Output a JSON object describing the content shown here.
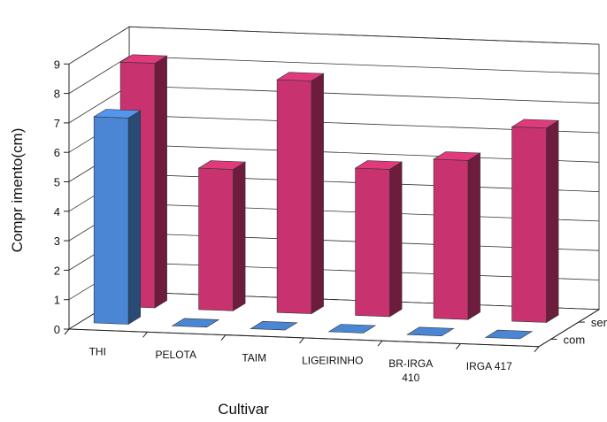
{
  "chart_data": {
    "type": "bar",
    "title": "",
    "xlabel": "Cultivar",
    "ylabel": "Compr imento(cm)",
    "ylim": [
      0,
      9
    ],
    "yticks": [
      "0",
      "1",
      "2",
      "3",
      "4",
      "5",
      "6",
      "7",
      "8",
      "9"
    ],
    "categories": [
      "THI",
      "PELOTA",
      "TAIM",
      "LIGEIRINHO",
      "BR-IRGA 410",
      "IRGA 417"
    ],
    "category_lines": [
      [
        "THI"
      ],
      [
        "PELOTA"
      ],
      [
        "TAIM"
      ],
      [
        "LIGEIRINHO"
      ],
      [
        "BR-IRGA",
        "410"
      ],
      [
        "IRGA 417"
      ]
    ],
    "depth_labels": [
      "sem",
      "com"
    ],
    "series": [
      {
        "name": "com",
        "values": [
          7.0,
          0,
          0,
          0,
          0,
          0
        ],
        "color": "#4a86d4"
      },
      {
        "name": "sem",
        "values": [
          8.3,
          4.8,
          7.9,
          5.0,
          5.4,
          6.6
        ],
        "color": "#c8336f"
      }
    ],
    "grid": true
  }
}
